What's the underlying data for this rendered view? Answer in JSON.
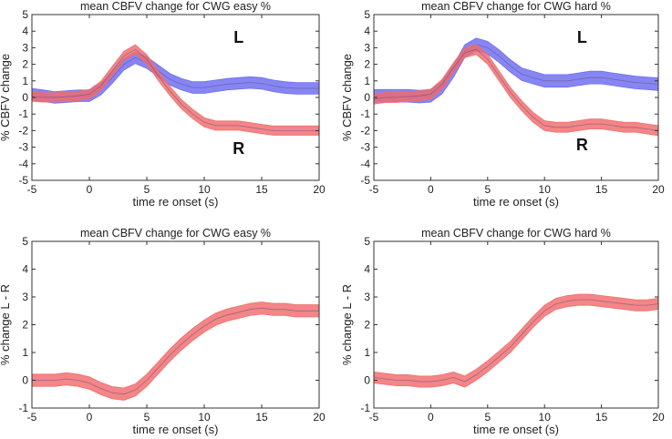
{
  "chart_data": [
    {
      "type": "line",
      "title": "mean CBFV change for CWG easy  %",
      "xlabel": "time re onset (s)",
      "ylabel": "% CBFV  change",
      "xlim": [
        -5,
        20
      ],
      "ylim": [
        -5,
        5
      ],
      "xticks": [
        -5,
        0,
        5,
        10,
        15,
        20
      ],
      "yticks": [
        -5,
        -4,
        -3,
        -2,
        -1,
        0,
        1,
        2,
        3,
        4,
        5
      ],
      "grid": false,
      "series": [
        {
          "name": "L",
          "color": "#6b6bf0",
          "x": [
            -5,
            -4,
            -3,
            -2,
            -1,
            0,
            1,
            2,
            3,
            4,
            5,
            6,
            7,
            8,
            9,
            10,
            11,
            12,
            13,
            14,
            15,
            16,
            17,
            18,
            19,
            20
          ],
          "mean": [
            0.2,
            0.1,
            0.0,
            0.05,
            0.1,
            0.1,
            0.5,
            1.2,
            2.0,
            2.4,
            2.1,
            1.6,
            1.1,
            0.8,
            0.6,
            0.6,
            0.7,
            0.8,
            0.85,
            0.9,
            0.85,
            0.7,
            0.6,
            0.55,
            0.55,
            0.55
          ],
          "halfwidth": 0.35,
          "annotation": {
            "text": "L",
            "x": 13,
            "y": 3.3
          }
        },
        {
          "name": "R",
          "color": "#f06b6b",
          "x": [
            -5,
            -4,
            -3,
            -2,
            -1,
            0,
            1,
            2,
            3,
            4,
            5,
            6,
            7,
            8,
            9,
            10,
            11,
            12,
            13,
            14,
            15,
            16,
            17,
            18,
            19,
            20
          ],
          "mean": [
            0.05,
            0.0,
            0.0,
            0.05,
            0.1,
            0.2,
            0.7,
            1.6,
            2.5,
            2.9,
            2.3,
            1.3,
            0.4,
            -0.4,
            -1.0,
            -1.5,
            -1.7,
            -1.7,
            -1.7,
            -1.8,
            -1.9,
            -2.0,
            -2.0,
            -2.0,
            -2.0,
            -2.0
          ],
          "halfwidth": 0.28,
          "annotation": {
            "text": "R",
            "x": 13,
            "y": -3.4
          }
        }
      ]
    },
    {
      "type": "line",
      "title": "mean CBFV change for CWG hard  %",
      "xlabel": "time re onset (s)",
      "ylabel": "% CBFV  change",
      "xlim": [
        -5,
        20
      ],
      "ylim": [
        -5,
        5
      ],
      "xticks": [
        -5,
        0,
        5,
        10,
        15,
        20
      ],
      "yticks": [
        -5,
        -4,
        -3,
        -2,
        -1,
        0,
        1,
        2,
        3,
        4,
        5
      ],
      "grid": false,
      "series": [
        {
          "name": "L",
          "color": "#6b6bf0",
          "x": [
            -5,
            -4,
            -3,
            -2,
            -1,
            0,
            1,
            2,
            3,
            4,
            5,
            6,
            7,
            8,
            9,
            10,
            11,
            12,
            13,
            14,
            15,
            16,
            17,
            18,
            19,
            20
          ],
          "mean": [
            0.1,
            0.1,
            0.1,
            0.1,
            0.05,
            0.1,
            0.6,
            1.6,
            2.8,
            3.2,
            3.0,
            2.5,
            1.9,
            1.4,
            1.2,
            1.0,
            1.0,
            1.0,
            1.1,
            1.2,
            1.2,
            1.1,
            1.0,
            0.9,
            0.85,
            0.8
          ],
          "halfwidth": 0.38,
          "annotation": {
            "text": "L",
            "x": 13.3,
            "y": 3.3
          }
        },
        {
          "name": "R",
          "color": "#f06b6b",
          "x": [
            -5,
            -4,
            -3,
            -2,
            -1,
            0,
            1,
            2,
            3,
            4,
            5,
            6,
            7,
            8,
            9,
            10,
            11,
            12,
            13,
            14,
            15,
            16,
            17,
            18,
            19,
            20
          ],
          "mean": [
            -0.1,
            0.0,
            0.0,
            0.05,
            0.1,
            0.2,
            0.8,
            1.8,
            2.7,
            2.9,
            2.3,
            1.3,
            0.3,
            -0.5,
            -1.2,
            -1.7,
            -1.8,
            -1.8,
            -1.7,
            -1.6,
            -1.6,
            -1.7,
            -1.8,
            -1.8,
            -1.9,
            -2.0
          ],
          "halfwidth": 0.3,
          "annotation": {
            "text": "R",
            "x": 13.3,
            "y": -3.2
          }
        }
      ]
    },
    {
      "type": "line",
      "title": "mean CBFV change for CWG easy  %",
      "xlabel": "time re onset (s)",
      "ylabel": "% change L - R",
      "xlim": [
        -5,
        20
      ],
      "ylim": [
        -1,
        5
      ],
      "xticks": [
        -5,
        0,
        5,
        10,
        15,
        20
      ],
      "yticks": [
        -1,
        0,
        1,
        2,
        3,
        4,
        5
      ],
      "grid": false,
      "series": [
        {
          "name": "L - R",
          "color": "#f06b6b",
          "x": [
            -5,
            -4,
            -3,
            -2,
            -1,
            0,
            1,
            2,
            3,
            4,
            5,
            6,
            7,
            8,
            9,
            10,
            11,
            12,
            13,
            14,
            15,
            16,
            17,
            18,
            19,
            20
          ],
          "mean": [
            0.0,
            0.0,
            0.0,
            0.05,
            0.0,
            -0.1,
            -0.3,
            -0.45,
            -0.5,
            -0.35,
            0.0,
            0.45,
            0.9,
            1.3,
            1.65,
            1.95,
            2.2,
            2.35,
            2.45,
            2.55,
            2.6,
            2.55,
            2.55,
            2.5,
            2.5,
            2.5
          ],
          "halfwidth": 0.22
        }
      ]
    },
    {
      "type": "line",
      "title": "mean CBFV change for CWG hard  %",
      "xlabel": "time re onset (s)",
      "ylabel": "% change L - R",
      "xlim": [
        -5,
        20
      ],
      "ylim": [
        -1,
        5
      ],
      "xticks": [
        -5,
        0,
        5,
        10,
        15,
        20
      ],
      "yticks": [
        -1,
        0,
        1,
        2,
        3,
        4,
        5
      ],
      "grid": false,
      "series": [
        {
          "name": "L - R",
          "color": "#f06b6b",
          "x": [
            -5,
            -4,
            -3,
            -2,
            -1,
            0,
            1,
            2,
            3,
            4,
            5,
            6,
            7,
            8,
            9,
            10,
            11,
            12,
            13,
            14,
            15,
            16,
            17,
            18,
            19,
            20
          ],
          "mean": [
            0.1,
            0.05,
            0.0,
            0.0,
            -0.05,
            -0.05,
            0.0,
            0.1,
            -0.05,
            0.2,
            0.5,
            0.85,
            1.2,
            1.65,
            2.1,
            2.5,
            2.75,
            2.85,
            2.9,
            2.9,
            2.85,
            2.8,
            2.75,
            2.7,
            2.7,
            2.75
          ],
          "halfwidth": 0.2
        }
      ]
    }
  ]
}
